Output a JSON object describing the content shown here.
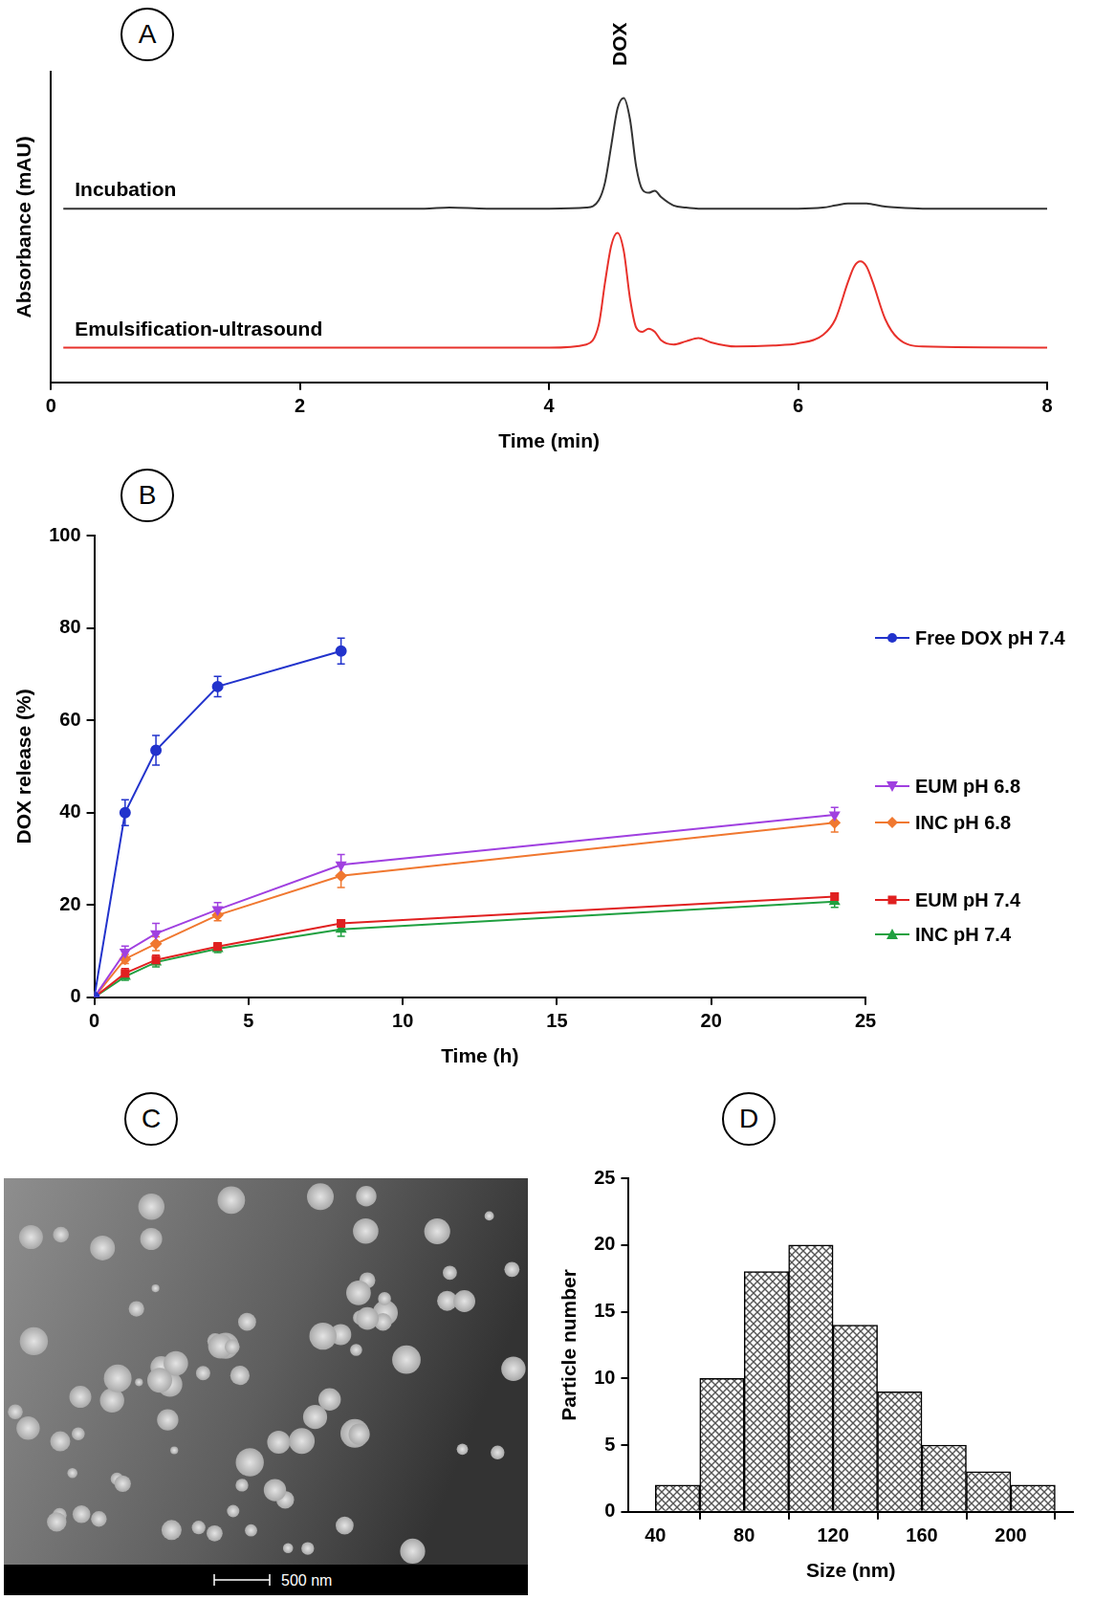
{
  "chart_data": [
    {
      "panel": "A",
      "type": "line",
      "x_label": "Time (min)",
      "y_label": "Absorbance (mAU)",
      "x": [
        0.1,
        3.0,
        3.2,
        3.5,
        4.0,
        4.3,
        4.4,
        4.45,
        4.5,
        4.55,
        4.6,
        4.65,
        4.7,
        4.75,
        4.8,
        4.85,
        4.9,
        5.0,
        5.1,
        5.2,
        5.3,
        5.5,
        5.8,
        6.0,
        6.2,
        6.3,
        6.4,
        6.45,
        6.5,
        6.55,
        6.6,
        6.7,
        6.8,
        7.0,
        8.0
      ],
      "series": [
        {
          "name": "Incubation",
          "color": "#333333",
          "values": [
            16.5,
            16.5,
            16.6,
            16.5,
            16.5,
            16.6,
            17.3,
            19.0,
            22.5,
            26.0,
            27.0,
            25.0,
            20.5,
            18.3,
            18.0,
            18.2,
            17.6,
            16.8,
            16.6,
            16.5,
            16.5,
            16.5,
            16.5,
            16.5,
            16.6,
            16.8,
            17.0,
            17.0,
            17.0,
            17.0,
            16.9,
            16.7,
            16.6,
            16.5,
            16.5
          ]
        },
        {
          "name": "Emulsification-ultrasound",
          "color": "#e8312b",
          "values": [
            3.3,
            3.3,
            3.3,
            3.3,
            3.3,
            3.6,
            5.5,
            9.5,
            13.0,
            14.2,
            12.5,
            8.0,
            5.2,
            4.8,
            5.1,
            4.8,
            4.0,
            3.6,
            3.9,
            4.2,
            3.8,
            3.4,
            3.5,
            3.7,
            4.5,
            6.0,
            9.5,
            11.0,
            11.5,
            11.0,
            9.5,
            6.0,
            4.2,
            3.4,
            3.3
          ]
        }
      ],
      "annotations": [
        {
          "text": "DOX",
          "x": 4.58
        }
      ],
      "xlim": [
        0,
        8
      ],
      "xticks": [
        0,
        2,
        4,
        6,
        8
      ],
      "ylim": [
        0,
        29.5
      ],
      "yticks": [],
      "tick_labels": "x",
      "grid": false
    },
    {
      "panel": "B",
      "type": "line",
      "x_label": "Time (h)",
      "y_label": "DOX release (%)",
      "xlim": [
        0,
        25
      ],
      "xticks": [
        0,
        5,
        10,
        15,
        20,
        25
      ],
      "ylim": [
        0,
        100
      ],
      "yticks": [
        0,
        20,
        40,
        60,
        80,
        100
      ],
      "grid": false,
      "legend": "right",
      "series": [
        {
          "name": "Free DOX pH 7.4",
          "color": "#2233cc",
          "marker": "circle",
          "x": [
            0,
            1,
            2,
            4,
            8
          ],
          "values": [
            0,
            40,
            53.5,
            67.3,
            75
          ],
          "errors": [
            0,
            2.8,
            3.2,
            2.2,
            2.8
          ]
        },
        {
          "name": "EUM pH 6.8",
          "color": "#a040e0",
          "marker": "triangle-down",
          "x": [
            0,
            1,
            2,
            4,
            8,
            24
          ],
          "values": [
            0,
            9.8,
            13.8,
            19,
            28.7,
            39.5
          ],
          "errors": [
            0,
            1.3,
            2.2,
            1.5,
            2.2,
            1.6
          ]
        },
        {
          "name": "INC pH 6.8",
          "color": "#f07830",
          "marker": "diamond",
          "x": [
            0,
            1,
            2,
            4,
            8,
            24
          ],
          "values": [
            0,
            8.3,
            11.6,
            17.8,
            26.3,
            37.8
          ],
          "errors": [
            0,
            1,
            1.5,
            1.2,
            2.5,
            2
          ]
        },
        {
          "name": "EUM pH 7.4",
          "color": "#e02020",
          "marker": "square",
          "x": [
            0,
            1,
            2,
            4,
            8,
            24
          ],
          "values": [
            0,
            5.2,
            8.1,
            11,
            16,
            21.8
          ],
          "errors": [
            0,
            1,
            1,
            0.8,
            0.8,
            0.8
          ]
        },
        {
          "name": "INC pH 7.4",
          "color": "#20a040",
          "marker": "triangle",
          "x": [
            0,
            1,
            2,
            4,
            8,
            24
          ],
          "values": [
            0,
            4.5,
            7.6,
            10.5,
            14.7,
            20.7
          ],
          "errors": [
            0,
            0.8,
            1,
            0.8,
            1.5,
            1.2
          ]
        }
      ]
    },
    {
      "panel": "C",
      "type": "image",
      "scale_bar": "500 nm"
    },
    {
      "panel": "D",
      "type": "histogram",
      "x_label": "Size (nm)",
      "y_label": "Particle number",
      "bins": [
        40,
        60,
        80,
        100,
        120,
        140,
        160,
        180,
        200,
        220
      ],
      "counts": [
        2,
        10,
        18,
        20,
        14,
        9,
        5,
        3,
        2
      ],
      "color": "#555555",
      "xlim": [
        28,
        228
      ],
      "xticks": [
        40,
        80,
        120,
        160,
        200
      ],
      "ylim": [
        0,
        25
      ],
      "yticks": [
        0,
        5,
        10,
        15,
        20,
        25
      ],
      "grid": false
    }
  ]
}
